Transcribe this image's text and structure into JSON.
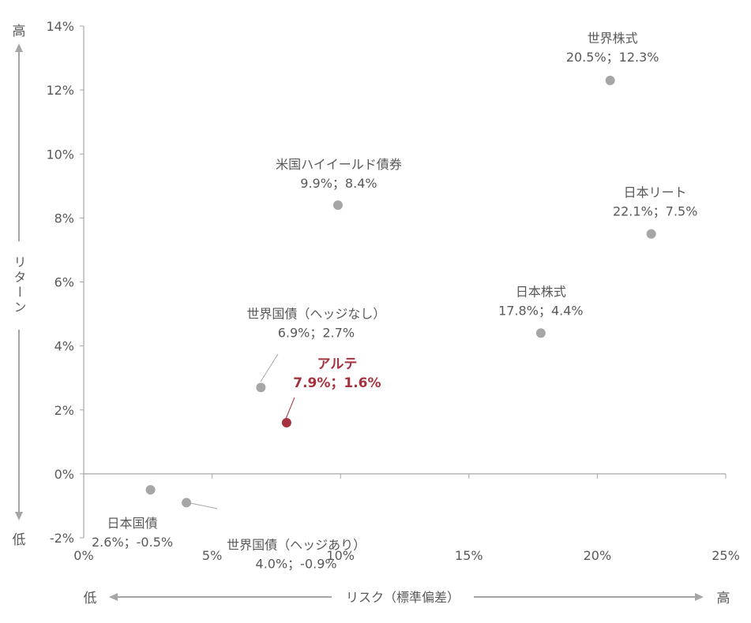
{
  "chart_data": {
    "type": "scatter",
    "xlabel": "リスク（標準偏差）",
    "ylabel": "リターン",
    "x_low_label": "低",
    "x_high_label": "高",
    "y_low_label": "低",
    "y_high_label": "高",
    "xlim": [
      0,
      25
    ],
    "ylim": [
      -2,
      14
    ],
    "x_ticks": [
      "0%",
      "5%",
      "10%",
      "15%",
      "20%",
      "25%"
    ],
    "x_tick_values": [
      0,
      5,
      10,
      15,
      20,
      25
    ],
    "y_ticks": [
      "-2%",
      "0%",
      "2%",
      "4%",
      "6%",
      "8%",
      "10%",
      "12%",
      "14%"
    ],
    "y_tick_values": [
      -2,
      0,
      2,
      4,
      6,
      8,
      10,
      12,
      14
    ],
    "grid": false,
    "colors": {
      "default": "#a6a6a6",
      "highlight": "#a5323c",
      "axis": "#a6a6a6",
      "text": "#595959"
    },
    "points": [
      {
        "name": "世界株式",
        "label": "20.5%；12.3%",
        "x": 20.5,
        "y": 12.3,
        "highlight": false
      },
      {
        "name": "米国ハイイールド債券",
        "label": "9.9%；8.4%",
        "x": 9.9,
        "y": 8.4,
        "highlight": false
      },
      {
        "name": "日本リート",
        "label": "22.1%；7.5%",
        "x": 22.1,
        "y": 7.5,
        "highlight": false
      },
      {
        "name": "日本株式",
        "label": "17.8%；4.4%",
        "x": 17.8,
        "y": 4.4,
        "highlight": false
      },
      {
        "name": "世界国債（ヘッジなし）",
        "label": "6.9%；2.7%",
        "x": 6.9,
        "y": 2.7,
        "highlight": false
      },
      {
        "name": "アルテ",
        "label": "7.9%；1.6%",
        "x": 7.9,
        "y": 1.6,
        "highlight": true
      },
      {
        "name": "日本国債",
        "label": "2.6%；-0.5%",
        "x": 2.6,
        "y": -0.5,
        "highlight": false
      },
      {
        "name": "世界国債（ヘッジあり）",
        "label": "4.0%；-0.9%",
        "x": 4.0,
        "y": -0.9,
        "highlight": false
      }
    ]
  }
}
